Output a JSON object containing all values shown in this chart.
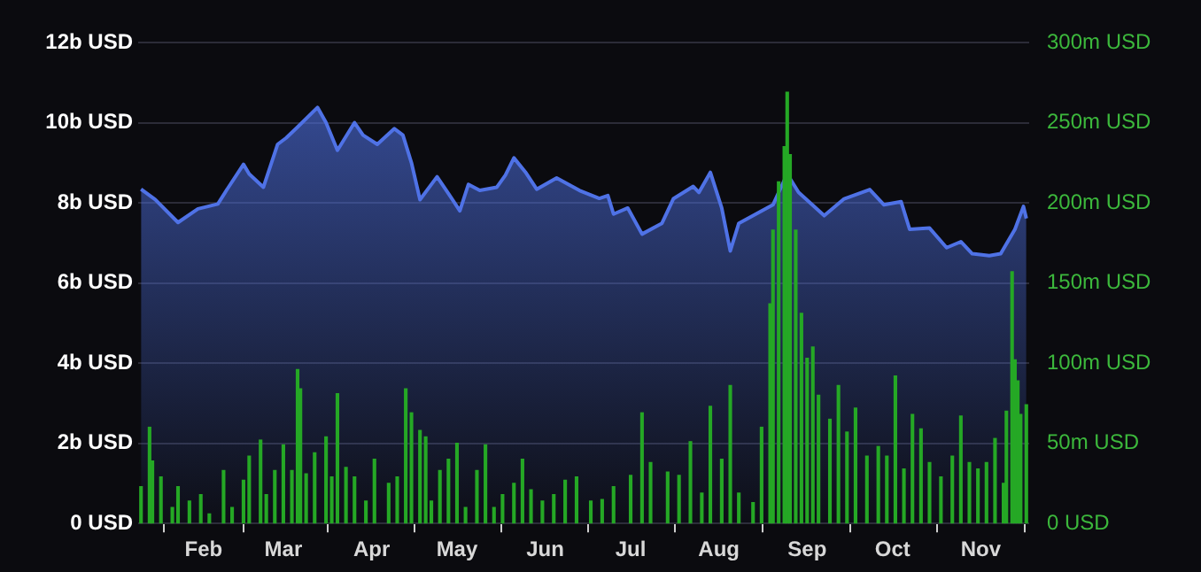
{
  "chart_data": {
    "type": "area",
    "xlim": [
      "--01-09",
      "--11-18"
    ],
    "xticks": [
      {
        "value": "--02-01",
        "label": "Feb"
      },
      {
        "value": "--03-01",
        "label": "Mar"
      },
      {
        "value": "--04-01",
        "label": "Apr"
      },
      {
        "value": "--05-01",
        "label": "May"
      },
      {
        "value": "--06-01",
        "label": "Jun"
      },
      {
        "value": "--07-01",
        "label": "Jul"
      },
      {
        "value": "--08-01",
        "label": "Aug"
      },
      {
        "value": "--09-01",
        "label": "Sep"
      },
      {
        "value": "--10-01",
        "label": "Oct"
      },
      {
        "value": "--11-01",
        "label": "Nov"
      }
    ],
    "ylim": [
      0,
      12
    ],
    "yticks": [
      {
        "value": 0,
        "label": "0 USD"
      },
      {
        "value": 2,
        "label": "2b USD"
      },
      {
        "value": 4,
        "label": "4b USD"
      },
      {
        "value": 6,
        "label": "6b USD"
      },
      {
        "value": 8,
        "label": "8b USD"
      },
      {
        "value": 10,
        "label": "10b USD"
      },
      {
        "value": 12,
        "label": "12b USD"
      }
    ],
    "y2lim": [
      0,
      300
    ],
    "y2ticks": [
      {
        "value": 0,
        "label": "0 USD"
      },
      {
        "value": 50,
        "label": "50m USD"
      },
      {
        "value": 100,
        "label": "100m USD"
      },
      {
        "value": 150,
        "label": "150m USD"
      },
      {
        "value": 200,
        "label": "200m USD"
      },
      {
        "value": 250,
        "label": "250m USD"
      },
      {
        "value": 300,
        "label": "300m USD"
      }
    ],
    "grid": "y",
    "series": [
      {
        "axis": "y",
        "color": "#4f72e6",
        "x": [
          "--01-10",
          "--01-15",
          "--01-23",
          "--01-30",
          "--02-06",
          "--02-09",
          "--02-15",
          "--02-17",
          "--02-22",
          "--02-27",
          "--03-02",
          "--03-06",
          "--03-13",
          "--03-16",
          "--03-20",
          "--03-26",
          "--03-29",
          "--04-03",
          "--04-09",
          "--04-12",
          "--04-15",
          "--04-18",
          "--04-24",
          "--04-28",
          "--05-02",
          "--05-05",
          "--05-09",
          "--05-15",
          "--05-18",
          "--05-21",
          "--05-25",
          "--05-29",
          "--06-05",
          "--06-13",
          "--06-20",
          "--06-23",
          "--06-25",
          "--06-30",
          "--07-05",
          "--07-12",
          "--07-16",
          "--07-23",
          "--07-25",
          "--07-29",
          "--08-02",
          "--08-05",
          "--08-08",
          "--08-14",
          "--08-20",
          "--08-25",
          "--08-29",
          "--09-07",
          "--09-14",
          "--09-23",
          "--09-28",
          "--10-04",
          "--10-07",
          "--10-14",
          "--10-20",
          "--10-25",
          "--10-29",
          "--11-04",
          "--11-08",
          "--11-13",
          "--11-16",
          "--11-17"
        ],
        "values": [
          8.34,
          8.08,
          7.51,
          7.85,
          7.97,
          8.31,
          8.96,
          8.72,
          8.39,
          9.46,
          9.62,
          9.89,
          10.38,
          10.0,
          9.31,
          10.0,
          9.69,
          9.46,
          9.85,
          9.69,
          9.0,
          8.08,
          8.65,
          8.23,
          7.8,
          8.46,
          8.31,
          8.39,
          8.69,
          9.12,
          8.77,
          8.34,
          8.62,
          8.31,
          8.11,
          8.18,
          7.72,
          7.87,
          7.22,
          7.49,
          8.1,
          8.41,
          8.26,
          8.76,
          7.87,
          6.8,
          7.49,
          7.72,
          7.95,
          8.72,
          8.26,
          7.68,
          8.1,
          8.33,
          7.95,
          8.03,
          7.34,
          7.37,
          6.88,
          7.03,
          6.73,
          6.68,
          6.73,
          7.34,
          7.91,
          7.61
        ]
      },
      {
        "type": "bar",
        "axis": "y2",
        "color": "#25a825",
        "x": [
          "--01-10",
          "--01-13",
          "--01-14",
          "--01-17",
          "--01-21",
          "--01-23",
          "--01-27",
          "--01-31",
          "--02-03",
          "--02-08",
          "--02-11",
          "--02-15",
          "--02-17",
          "--02-21",
          "--02-23",
          "--02-26",
          "--03-01",
          "--03-04",
          "--03-06",
          "--03-07",
          "--03-09",
          "--03-12",
          "--03-16",
          "--03-18",
          "--03-20",
          "--03-23",
          "--03-26",
          "--03-30",
          "--04-02",
          "--04-07",
          "--04-10",
          "--04-13",
          "--04-15",
          "--04-18",
          "--04-20",
          "--04-22",
          "--04-25",
          "--04-28",
          "--05-01",
          "--05-04",
          "--05-08",
          "--05-11",
          "--05-14",
          "--05-17",
          "--05-21",
          "--05-24",
          "--05-27",
          "--05-31",
          "--06-04",
          "--06-08",
          "--06-12",
          "--06-17",
          "--06-21",
          "--06-25",
          "--07-01",
          "--07-05",
          "--07-08",
          "--07-14",
          "--07-18",
          "--07-22",
          "--07-26",
          "--07-29",
          "--08-02",
          "--08-05",
          "--08-08",
          "--08-13",
          "--08-16",
          "--08-19",
          "--08-20",
          "--08-22",
          "--08-24",
          "--08-25",
          "--08-26",
          "--08-28",
          "--08-30",
          "--09-01",
          "--09-03",
          "--09-05",
          "--09-09",
          "--09-12",
          "--09-15",
          "--09-18",
          "--09-22",
          "--09-26",
          "--09-29",
          "--10-02",
          "--10-05",
          "--10-08",
          "--10-11",
          "--10-14",
          "--10-18",
          "--10-22",
          "--10-25",
          "--10-28",
          "--10-31",
          "--11-03",
          "--11-06",
          "--11-09",
          "--11-10",
          "--11-12",
          "--11-13",
          "--11-14",
          "--11-15",
          "--11-17"
        ],
        "values": [
          23,
          60,
          39,
          29,
          10,
          23,
          14,
          18,
          6,
          33,
          10,
          27,
          42,
          52,
          18,
          33,
          49,
          33,
          96,
          84,
          31,
          44,
          54,
          29,
          81,
          35,
          29,
          14,
          40,
          25,
          29,
          84,
          69,
          58,
          54,
          14,
          33,
          40,
          50,
          10,
          33,
          49,
          10,
          18,
          25,
          40,
          21,
          14,
          18,
          27,
          29,
          14,
          15,
          23,
          30,
          69,
          38,
          32,
          30,
          51,
          19,
          73,
          40,
          86,
          19,
          13,
          60,
          137,
          183,
          213,
          235,
          269,
          230,
          183,
          131,
          103,
          110,
          80,
          65,
          86,
          57,
          72,
          42,
          48,
          42,
          92,
          34,
          68,
          59,
          38,
          29,
          42,
          67,
          38,
          34,
          38,
          53,
          25,
          70,
          157,
          102,
          89,
          68,
          74
        ]
      }
    ]
  }
}
